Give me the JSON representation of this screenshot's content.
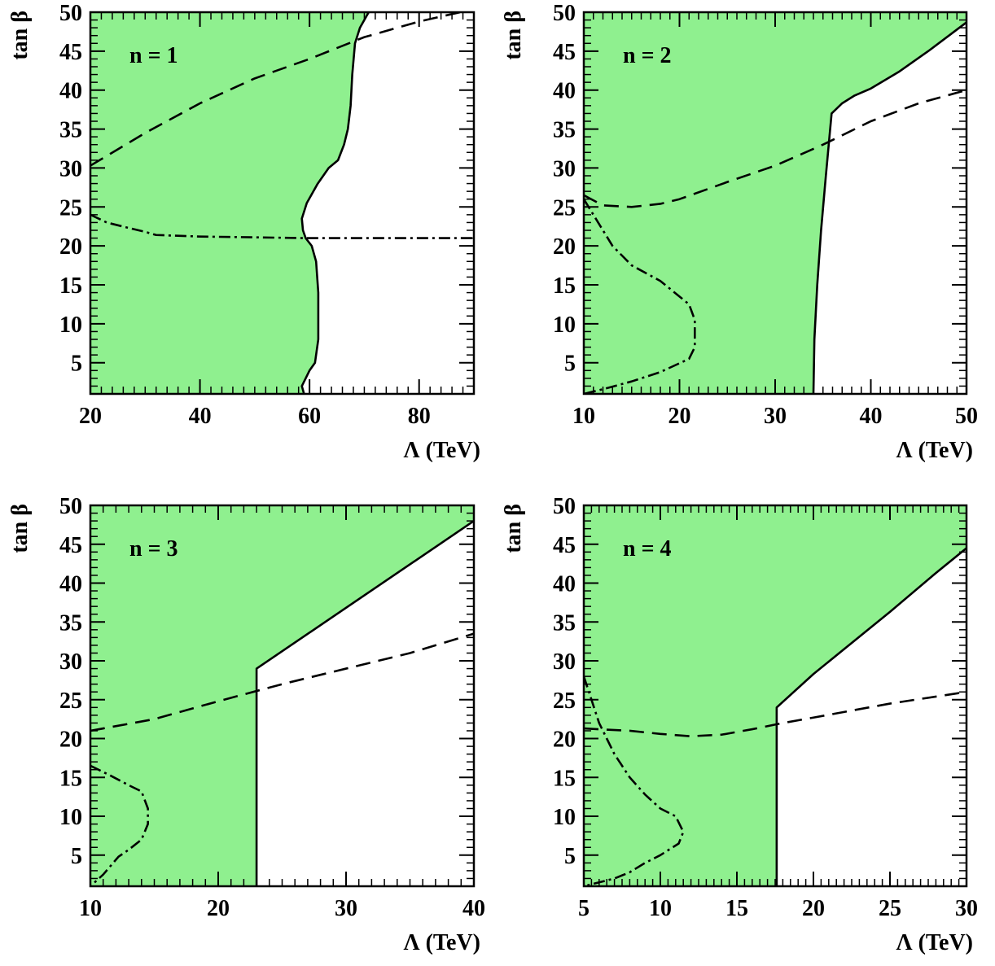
{
  "colors": {
    "allowed_fill": "#8ff08f",
    "line": "#000000",
    "background": "#ffffff"
  },
  "chart_data": [
    {
      "type": "area",
      "panel_label": "n = 1",
      "xlabel": "Λ (TeV)",
      "ylabel": "tan β",
      "xlim": [
        20,
        90
      ],
      "ylim": [
        1,
        50
      ],
      "xticks": [
        20,
        40,
        60,
        80
      ],
      "yticks": [
        5,
        10,
        15,
        20,
        25,
        30,
        35,
        40,
        45,
        50
      ],
      "minor_xstep": 2,
      "minor_ystep": 1,
      "series": [
        {
          "style": "solid-boundary-filled",
          "fill_side": "left",
          "points": [
            [
              59.0,
              1
            ],
            [
              58.6,
              2
            ],
            [
              60.0,
              4
            ],
            [
              61.0,
              5
            ],
            [
              61.6,
              8
            ],
            [
              61.6,
              14
            ],
            [
              61.2,
              18
            ],
            [
              60.4,
              20
            ],
            [
              59.3,
              21
            ],
            [
              58.8,
              22
            ],
            [
              58.6,
              23.5
            ],
            [
              59.5,
              25.5
            ],
            [
              61.5,
              28
            ],
            [
              63.5,
              30
            ],
            [
              65.2,
              31
            ],
            [
              66.3,
              33
            ],
            [
              67.0,
              35
            ],
            [
              67.5,
              38
            ],
            [
              67.8,
              42
            ],
            [
              68.3,
              46
            ],
            [
              69.2,
              48
            ],
            [
              70.8,
              50
            ]
          ]
        },
        {
          "style": "dashed",
          "points": [
            [
              20,
              30.3
            ],
            [
              30,
              34.5
            ],
            [
              40,
              38.3
            ],
            [
              50,
              41.5
            ],
            [
              60,
              44
            ],
            [
              70,
              46.8
            ],
            [
              80,
              48.8
            ],
            [
              90,
              50.4
            ]
          ]
        },
        {
          "style": "dash-dot",
          "points": [
            [
              20,
              24
            ],
            [
              23,
              23
            ],
            [
              27,
              22.3
            ],
            [
              30,
              21.8
            ],
            [
              32,
              21.4
            ],
            [
              40,
              21.2
            ],
            [
              50,
              21.1
            ],
            [
              59,
              21
            ],
            [
              70,
              21
            ],
            [
              90,
              21
            ]
          ]
        }
      ]
    },
    {
      "type": "area",
      "panel_label": "n = 2",
      "xlabel": "Λ (TeV)",
      "ylabel": "tan β",
      "xlim": [
        10,
        50
      ],
      "ylim": [
        1,
        50
      ],
      "xticks": [
        10,
        20,
        30,
        40,
        50
      ],
      "yticks": [
        5,
        10,
        15,
        20,
        25,
        30,
        35,
        40,
        45,
        50
      ],
      "minor_xstep": 1,
      "minor_ystep": 1,
      "series": [
        {
          "style": "solid-boundary-filled",
          "fill_side": "left",
          "points": [
            [
              34,
              1
            ],
            [
              34.1,
              8
            ],
            [
              34.4,
              15
            ],
            [
              34.8,
              22
            ],
            [
              35.3,
              29
            ],
            [
              35.9,
              37
            ],
            [
              37,
              38.3
            ],
            [
              38.3,
              39.3
            ],
            [
              40,
              40.2
            ],
            [
              43,
              42.4
            ],
            [
              46,
              45
            ],
            [
              50,
              48.7
            ]
          ]
        },
        {
          "style": "dashed",
          "points": [
            [
              10,
              26.5
            ],
            [
              12,
              25.2
            ],
            [
              15,
              25
            ],
            [
              18,
              25.4
            ],
            [
              20,
              26
            ],
            [
              25,
              28.2
            ],
            [
              30,
              30.3
            ],
            [
              35,
              33
            ],
            [
              40,
              36
            ],
            [
              45,
              38.3
            ],
            [
              50,
              40
            ]
          ]
        },
        {
          "style": "dash-dot",
          "points": [
            [
              10,
              26
            ],
            [
              11,
              24
            ],
            [
              13,
              20
            ],
            [
              15,
              17.5
            ],
            [
              18,
              15.5
            ],
            [
              20,
              13.5
            ],
            [
              21,
              12.5
            ],
            [
              21.6,
              10.5
            ],
            [
              21.6,
              7
            ],
            [
              21,
              5.5
            ],
            [
              18,
              3.8
            ],
            [
              15,
              2.6
            ],
            [
              12,
              1.6
            ],
            [
              10,
              1
            ]
          ]
        }
      ]
    },
    {
      "type": "area",
      "panel_label": "n = 3",
      "xlabel": "Λ (TeV)",
      "ylabel": "tan β",
      "xlim": [
        10,
        40
      ],
      "ylim": [
        1,
        50
      ],
      "xticks": [
        10,
        20,
        30,
        40
      ],
      "yticks": [
        5,
        10,
        15,
        20,
        25,
        30,
        35,
        40,
        45,
        50
      ],
      "minor_xstep": 1,
      "minor_ystep": 1,
      "series": [
        {
          "style": "solid-boundary-filled",
          "fill_side": "left",
          "points": [
            [
              23,
              1
            ],
            [
              23,
              29
            ],
            [
              40,
              48
            ]
          ]
        },
        {
          "style": "dashed",
          "points": [
            [
              10,
              21
            ],
            [
              15,
              22.5
            ],
            [
              20,
              24.8
            ],
            [
              25,
              27
            ],
            [
              30,
              29
            ],
            [
              35,
              31
            ],
            [
              40,
              33.5
            ]
          ]
        },
        {
          "style": "dash-dot",
          "points": [
            [
              10,
              16.5
            ],
            [
              11.5,
              15.3
            ],
            [
              13,
              14
            ],
            [
              14,
              13.2
            ],
            [
              14.5,
              11
            ],
            [
              14.5,
              9
            ],
            [
              14,
              7
            ],
            [
              13,
              5.7
            ],
            [
              12.2,
              4.8
            ],
            [
              11,
              2.5
            ],
            [
              10,
              1
            ]
          ]
        }
      ]
    },
    {
      "type": "area",
      "panel_label": "n = 4",
      "xlabel": "Λ (TeV)",
      "ylabel": "tan β",
      "xlim": [
        5,
        30
      ],
      "ylim": [
        1,
        50
      ],
      "xticks": [
        5,
        10,
        15,
        20,
        25,
        30
      ],
      "yticks": [
        5,
        10,
        15,
        20,
        25,
        30,
        35,
        40,
        45,
        50
      ],
      "minor_xstep": 0.5,
      "minor_ystep": 1,
      "series": [
        {
          "style": "solid-boundary-filled",
          "fill_side": "left",
          "points": [
            [
              17.6,
              1
            ],
            [
              17.6,
              24
            ],
            [
              20,
              28.3
            ],
            [
              25,
              36.3
            ],
            [
              28,
              41.3
            ],
            [
              30,
              44.5
            ]
          ]
        },
        {
          "style": "dashed",
          "points": [
            [
              5,
              21.3
            ],
            [
              8,
              21
            ],
            [
              10,
              20.6
            ],
            [
              12,
              20.3
            ],
            [
              14,
              20.5
            ],
            [
              16,
              21.2
            ],
            [
              18,
              22
            ],
            [
              20,
              22.7
            ],
            [
              25,
              24.5
            ],
            [
              30,
              26
            ]
          ]
        },
        {
          "style": "dash-dot",
          "points": [
            [
              5,
              28
            ],
            [
              6,
              22
            ],
            [
              7,
              18
            ],
            [
              8,
              15
            ],
            [
              9,
              12.8
            ],
            [
              10,
              11
            ],
            [
              11,
              10
            ],
            [
              11.5,
              8
            ],
            [
              11.2,
              6.5
            ],
            [
              10,
              5
            ],
            [
              9,
              4
            ],
            [
              8,
              2.8
            ],
            [
              7,
              2
            ],
            [
              5,
              1
            ]
          ]
        }
      ]
    }
  ]
}
